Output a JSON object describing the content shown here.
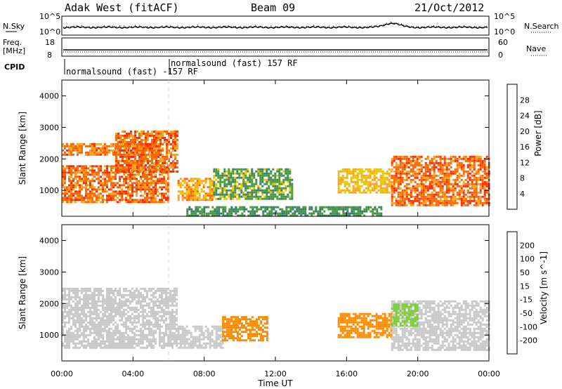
{
  "header": {
    "station": "Adak West (fitACF)",
    "beam": "Beam 09",
    "date": "21/Oct/2012"
  },
  "noise_panel": {
    "left_label": "N.Sky",
    "right_label": "N.Search",
    "left_ticks": [
      "10^5",
      "10^0"
    ],
    "right_ticks": [
      "10^5",
      "10^0"
    ]
  },
  "freq_panel": {
    "left_label_line1": "Freq.",
    "left_label_line2": "[MHz]",
    "right_label": "Nave",
    "left_ticks": [
      "18",
      "8"
    ],
    "right_ticks": [
      "60",
      "0"
    ]
  },
  "cpid": {
    "label": "CPID",
    "segments": [
      "normalsound (fast) -157 RF",
      "normalsound (fast) 157 RF"
    ]
  },
  "colors": {
    "power_scale": [
      "#1a1aff",
      "#2a3fb0",
      "#3a7f6a",
      "#4a9a3a",
      "#e5c800",
      "#ffa21a",
      "#ff6600",
      "#ff2a00"
    ],
    "velocity_scale": [
      "#ff0000",
      "#ff5a00",
      "#ff8c00",
      "#ffb23a",
      "#c8c8c8",
      "#7ccd3a",
      "#3f8f5a",
      "#1a3fbf",
      "#1a1aff"
    ]
  },
  "chart_data": [
    {
      "type": "heatmap",
      "title": "",
      "xlabel": "Time UT",
      "ylabel": "Slant Range [km]",
      "xlim": [
        "00:00",
        "24:00"
      ],
      "ylim": [
        180,
        4500
      ],
      "x_ticks": [
        "00:00",
        "04:00",
        "08:00",
        "12:00",
        "16:00",
        "20:00",
        "00:00"
      ],
      "y_ticks": [
        1000,
        2000,
        3000,
        4000
      ],
      "colorbar": {
        "label": "Power [dB]",
        "range": [
          0,
          32
        ],
        "ticks": [
          4,
          8,
          12,
          16,
          20,
          24,
          28
        ]
      },
      "regions": [
        {
          "t_start": 0.0,
          "t_end": 6.0,
          "r_min": 600,
          "r_max": 1800,
          "value": 26
        },
        {
          "t_start": 0.0,
          "t_end": 5.5,
          "r_min": 2100,
          "r_max": 2500,
          "value": 25
        },
        {
          "t_start": 3.0,
          "t_end": 6.5,
          "r_min": 1600,
          "r_max": 2900,
          "value": 26
        },
        {
          "t_start": 6.5,
          "t_end": 8.5,
          "r_min": 700,
          "r_max": 1400,
          "value": 22
        },
        {
          "t_start": 8.5,
          "t_end": 13.0,
          "r_min": 700,
          "r_max": 1700,
          "value": 14
        },
        {
          "t_start": 15.5,
          "t_end": 18.5,
          "r_min": 900,
          "r_max": 1700,
          "value": 20
        },
        {
          "t_start": 18.5,
          "t_end": 24.0,
          "r_min": 500,
          "r_max": 2100,
          "value": 26
        },
        {
          "t_start": 7.0,
          "t_end": 18.0,
          "r_min": 180,
          "r_max": 500,
          "value": 12
        }
      ]
    },
    {
      "type": "heatmap",
      "title": "",
      "xlabel": "Time UT",
      "ylabel": "Slant Range [km]",
      "xlim": [
        "00:00",
        "24:00"
      ],
      "ylim": [
        180,
        4500
      ],
      "x_ticks": [
        "00:00",
        "04:00",
        "08:00",
        "12:00",
        "16:00",
        "20:00",
        "00:00"
      ],
      "y_ticks": [
        1000,
        2000,
        3000,
        4000
      ],
      "colorbar": {
        "label": "Velocity [m s^-1]",
        "range": [
          -250,
          250
        ],
        "ticks": [
          -200,
          -100,
          -50,
          -15,
          15,
          50,
          100,
          200
        ]
      },
      "regions": [
        {
          "t_start": 0.0,
          "t_end": 6.5,
          "r_min": 600,
          "r_max": 2500,
          "value": 0
        },
        {
          "t_start": 6.5,
          "t_end": 9.0,
          "r_min": 600,
          "r_max": 1300,
          "value": 0
        },
        {
          "t_start": 9.0,
          "t_end": 11.5,
          "r_min": 800,
          "r_max": 1600,
          "value": -70
        },
        {
          "t_start": 15.5,
          "t_end": 18.5,
          "r_min": 900,
          "r_max": 1700,
          "value": -70
        },
        {
          "t_start": 18.5,
          "t_end": 24.0,
          "r_min": 500,
          "r_max": 2100,
          "value": 0
        },
        {
          "t_start": 18.5,
          "t_end": 20.0,
          "r_min": 1300,
          "r_max": 2000,
          "value": 40
        }
      ]
    }
  ]
}
